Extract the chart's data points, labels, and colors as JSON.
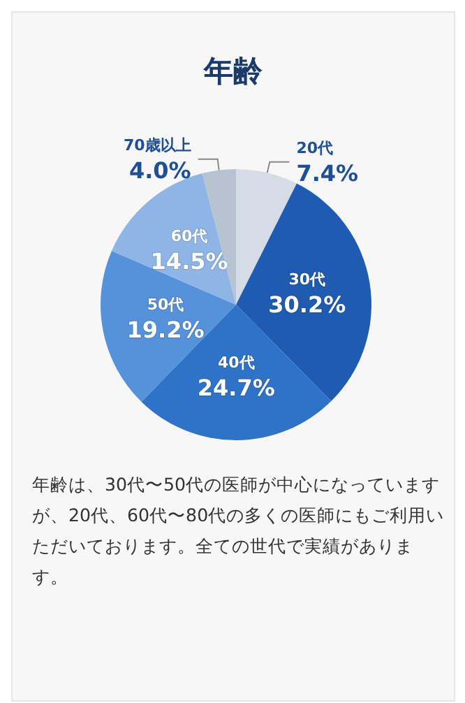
{
  "chart_data": {
    "type": "pie",
    "title": "年齢",
    "categories": [
      "20代",
      "30代",
      "40代",
      "50代",
      "60代",
      "70歳以上"
    ],
    "values": [
      7.4,
      30.2,
      24.7,
      19.2,
      14.5,
      4.0
    ],
    "colors": [
      "#d5dce6",
      "#1f5bb0",
      "#2e73c8",
      "#5592d9",
      "#8fb4e6",
      "#b8c3d1"
    ],
    "value_labels": [
      "7.4%",
      "30.2%",
      "24.7%",
      "19.2%",
      "14.5%",
      "4.0%"
    ],
    "legend": false,
    "annotations": [
      "年齢は、30代〜50代の医師が中心になっていますが、20代、60代〜80代の多くの医師にもご利用いただいております。全ての世代で実績があります。"
    ]
  }
}
